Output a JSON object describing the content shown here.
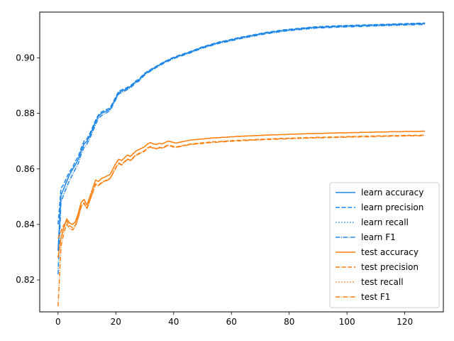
{
  "chart_data": {
    "type": "line",
    "title": "",
    "xlabel": "",
    "ylabel": "",
    "xlim": [
      -6.35,
      133.35
    ],
    "ylim": [
      0.8085,
      0.9165
    ],
    "xticks": [
      0,
      20,
      40,
      60,
      80,
      100,
      120
    ],
    "yticks": [
      0.82,
      0.84,
      0.86,
      0.88,
      0.9
    ],
    "ytick_labels": [
      "0.82",
      "0.84",
      "0.86",
      "0.88",
      "0.90"
    ],
    "grid": false,
    "legend_position": "lower-right",
    "colors": {
      "learn": "#1f86e8",
      "test": "#ff7f0e"
    },
    "x_start": 0,
    "x_end": 127,
    "series": [
      {
        "name": "learn accuracy",
        "group": "learn",
        "dash": "solid",
        "values": [
          0.8305,
          0.8505,
          0.853,
          0.8555,
          0.858,
          0.8598,
          0.8615,
          0.8635,
          0.8665,
          0.869,
          0.87,
          0.872,
          0.8745,
          0.877,
          0.879,
          0.88,
          0.8805,
          0.881,
          0.8815,
          0.8835,
          0.8855,
          0.8875,
          0.888,
          0.8885,
          0.889,
          0.8896,
          0.8905,
          0.8915,
          0.892,
          0.8932,
          0.8942,
          0.895,
          0.8955,
          0.8962,
          0.8968,
          0.8974,
          0.898,
          0.8986,
          0.899,
          0.8996,
          0.9,
          0.9004,
          0.9008,
          0.9011,
          0.9015,
          0.9018,
          0.9022,
          0.9026,
          0.903,
          0.9034,
          0.9038,
          0.9041,
          0.9044,
          0.9047,
          0.905,
          0.9053,
          0.9056,
          0.9058,
          0.906,
          0.9062,
          0.9065,
          0.9067,
          0.907,
          0.9072,
          0.9074,
          0.9076,
          0.9078,
          0.908,
          0.9082,
          0.9084,
          0.9086,
          0.9088,
          0.909,
          0.9091,
          0.9093,
          0.9094,
          0.9096,
          0.9097,
          0.9099,
          0.91,
          0.9101,
          0.9102,
          0.9103,
          0.9104,
          0.9105,
          0.9106,
          0.9107,
          0.9108,
          0.9109,
          0.911,
          0.911,
          0.9111,
          0.9111,
          0.9112,
          0.9112,
          0.9113,
          0.9113,
          0.9114,
          0.9114,
          0.9114,
          0.9115,
          0.9115,
          0.9115,
          0.9116,
          0.9116,
          0.9116,
          0.9117,
          0.9117,
          0.9117,
          0.9118,
          0.9118,
          0.9118,
          0.9119,
          0.9119,
          0.9119,
          0.912,
          0.912,
          0.912,
          0.9121,
          0.9121,
          0.9121,
          0.9122,
          0.9122,
          0.9122,
          0.9123,
          0.9123,
          0.9123,
          0.9124
        ]
      },
      {
        "name": "learn precision",
        "group": "learn",
        "dash": "dashed",
        "values": [
          0.84,
          0.853,
          0.8545,
          0.857,
          0.859,
          0.8605,
          0.8628,
          0.8645,
          0.8675,
          0.87,
          0.8708,
          0.8728,
          0.8752,
          0.8776,
          0.8795,
          0.8805,
          0.881,
          0.8815,
          0.882,
          0.884,
          0.886,
          0.888,
          0.8885,
          0.8889,
          0.8894,
          0.89,
          0.8908,
          0.8918,
          0.8923,
          0.8935,
          0.8945,
          0.8952,
          0.8958,
          0.8964,
          0.897,
          0.8976,
          0.8982,
          0.8988,
          0.8992,
          0.8998,
          0.9002,
          0.9006,
          0.901,
          0.9013,
          0.9017,
          0.902,
          0.9024,
          0.9028,
          0.9032,
          0.9036,
          0.904,
          0.9043,
          0.9046,
          0.9049,
          0.9052,
          0.9055,
          0.9058,
          0.906,
          0.9062,
          0.9064,
          0.9067,
          0.9069,
          0.9072,
          0.9074,
          0.9076,
          0.9078,
          0.908,
          0.9082,
          0.9084,
          0.9086,
          0.9088,
          0.909,
          0.9092,
          0.9093,
          0.9095,
          0.9096,
          0.9098,
          0.9099,
          0.9101,
          0.9102,
          0.9103,
          0.9104,
          0.9105,
          0.9106,
          0.9107,
          0.9108,
          0.9109,
          0.911,
          0.9111,
          0.9112,
          0.9112,
          0.9113,
          0.9113,
          0.9114,
          0.9114,
          0.9115,
          0.9115,
          0.9116,
          0.9116,
          0.9116,
          0.9117,
          0.9117,
          0.9117,
          0.9118,
          0.9118,
          0.9118,
          0.9119,
          0.9119,
          0.9119,
          0.912,
          0.912,
          0.912,
          0.9121,
          0.9121,
          0.9121,
          0.9122,
          0.9122,
          0.9122,
          0.9123,
          0.9123,
          0.9123,
          0.9124,
          0.9124,
          0.9124,
          0.9125,
          0.9125,
          0.9125,
          0.9126
        ]
      },
      {
        "name": "learn recall",
        "group": "learn",
        "dash": "dotted",
        "values": [
          0.8305,
          0.8505,
          0.853,
          0.8555,
          0.858,
          0.8598,
          0.8615,
          0.8635,
          0.8665,
          0.869,
          0.87,
          0.872,
          0.8745,
          0.877,
          0.879,
          0.88,
          0.8805,
          0.881,
          0.8815,
          0.8835,
          0.8855,
          0.8875,
          0.888,
          0.8885,
          0.889,
          0.8896,
          0.8905,
          0.8915,
          0.892,
          0.8932,
          0.8942,
          0.895,
          0.8955,
          0.8962,
          0.8968,
          0.8974,
          0.898,
          0.8986,
          0.899,
          0.8996,
          0.9,
          0.9004,
          0.9008,
          0.9011,
          0.9015,
          0.9018,
          0.9022,
          0.9026,
          0.903,
          0.9034,
          0.9038,
          0.9041,
          0.9044,
          0.9047,
          0.905,
          0.9053,
          0.9056,
          0.9058,
          0.906,
          0.9062,
          0.9065,
          0.9067,
          0.907,
          0.9072,
          0.9074,
          0.9076,
          0.9078,
          0.908,
          0.9082,
          0.9084,
          0.9086,
          0.9088,
          0.909,
          0.9091,
          0.9093,
          0.9094,
          0.9096,
          0.9097,
          0.9099,
          0.91,
          0.9101,
          0.9102,
          0.9103,
          0.9104,
          0.9105,
          0.9106,
          0.9107,
          0.9108,
          0.9109,
          0.911,
          0.911,
          0.9111,
          0.9111,
          0.9112,
          0.9112,
          0.9113,
          0.9113,
          0.9114,
          0.9114,
          0.9114,
          0.9115,
          0.9115,
          0.9115,
          0.9116,
          0.9116,
          0.9116,
          0.9117,
          0.9117,
          0.9117,
          0.9118,
          0.9118,
          0.9118,
          0.9119,
          0.9119,
          0.9119,
          0.912,
          0.912,
          0.912,
          0.9121,
          0.9121,
          0.9121,
          0.9122,
          0.9122,
          0.9122,
          0.9123,
          0.9123,
          0.9123,
          0.9124
        ]
      },
      {
        "name": "learn F1",
        "group": "learn",
        "dash": "dashdot",
        "values": [
          0.822,
          0.848,
          0.851,
          0.8535,
          0.856,
          0.858,
          0.86,
          0.862,
          0.8652,
          0.8678,
          0.869,
          0.871,
          0.8735,
          0.876,
          0.8782,
          0.8792,
          0.8798,
          0.8804,
          0.881,
          0.883,
          0.885,
          0.887,
          0.8875,
          0.888,
          0.8886,
          0.8892,
          0.8901,
          0.8911,
          0.8916,
          0.8928,
          0.8938,
          0.8946,
          0.8952,
          0.8959,
          0.8965,
          0.8971,
          0.8977,
          0.8983,
          0.8987,
          0.8993,
          0.8997,
          0.9001,
          0.9005,
          0.9008,
          0.9012,
          0.9015,
          0.9019,
          0.9023,
          0.9027,
          0.9031,
          0.9035,
          0.9038,
          0.9041,
          0.9044,
          0.9047,
          0.905,
          0.9053,
          0.9055,
          0.9057,
          0.9059,
          0.9062,
          0.9064,
          0.9067,
          0.9069,
          0.9071,
          0.9073,
          0.9075,
          0.9077,
          0.9079,
          0.9081,
          0.9083,
          0.9085,
          0.9087,
          0.9088,
          0.909,
          0.9091,
          0.9093,
          0.9094,
          0.9096,
          0.9097,
          0.9098,
          0.9099,
          0.91,
          0.9101,
          0.9102,
          0.9103,
          0.9104,
          0.9105,
          0.9106,
          0.9107,
          0.9107,
          0.9108,
          0.9108,
          0.9109,
          0.9109,
          0.911,
          0.911,
          0.9111,
          0.9111,
          0.9111,
          0.9112,
          0.9112,
          0.9112,
          0.9113,
          0.9113,
          0.9113,
          0.9114,
          0.9114,
          0.9114,
          0.9115,
          0.9115,
          0.9115,
          0.9116,
          0.9116,
          0.9116,
          0.9117,
          0.9117,
          0.9117,
          0.9118,
          0.9118,
          0.9118,
          0.9119,
          0.9119,
          0.9119,
          0.912,
          0.912,
          0.912,
          0.9121
        ]
      },
      {
        "name": "test accuracy",
        "group": "test",
        "dash": "solid",
        "values": [
          0.828,
          0.835,
          0.839,
          0.842,
          0.8405,
          0.84,
          0.841,
          0.844,
          0.848,
          0.849,
          0.847,
          0.85,
          0.853,
          0.856,
          0.8555,
          0.8565,
          0.857,
          0.8575,
          0.858,
          0.86,
          0.862,
          0.8635,
          0.863,
          0.864,
          0.865,
          0.8645,
          0.8655,
          0.8665,
          0.867,
          0.8675,
          0.868,
          0.869,
          0.8695,
          0.869,
          0.8688,
          0.8692,
          0.869,
          0.8695,
          0.87,
          0.8698,
          0.8695,
          0.8693,
          0.8696,
          0.8698,
          0.87,
          0.8702,
          0.8704,
          0.8705,
          0.8706,
          0.8707,
          0.8708,
          0.8709,
          0.871,
          0.8711,
          0.8712,
          0.8712,
          0.8713,
          0.8714,
          0.8714,
          0.8715,
          0.8716,
          0.8716,
          0.8717,
          0.8717,
          0.8718,
          0.8718,
          0.8719,
          0.8719,
          0.872,
          0.872,
          0.8721,
          0.8721,
          0.8722,
          0.8722,
          0.8723,
          0.8723,
          0.8723,
          0.8724,
          0.8724,
          0.8724,
          0.8725,
          0.8725,
          0.8725,
          0.8726,
          0.8726,
          0.8726,
          0.8727,
          0.8727,
          0.8727,
          0.8728,
          0.8728,
          0.8728,
          0.8728,
          0.8729,
          0.8729,
          0.8729,
          0.8729,
          0.873,
          0.873,
          0.873,
          0.873,
          0.8731,
          0.8731,
          0.8731,
          0.8731,
          0.8732,
          0.8732,
          0.8732,
          0.8732,
          0.8732,
          0.8733,
          0.8733,
          0.8733,
          0.8733,
          0.8733,
          0.8734,
          0.8734,
          0.8734,
          0.8734,
          0.8734,
          0.8735,
          0.8735,
          0.8735,
          0.8735,
          0.8735,
          0.8735,
          0.8736,
          0.8736
        ]
      },
      {
        "name": "test precision",
        "group": "test",
        "dash": "dashed",
        "values": [
          0.835,
          0.8375,
          0.8398,
          0.8412,
          0.8395,
          0.8388,
          0.8398,
          0.8428,
          0.8466,
          0.8478,
          0.8458,
          0.8488,
          0.8516,
          0.8546,
          0.8541,
          0.8551,
          0.8556,
          0.8561,
          0.8566,
          0.8586,
          0.8606,
          0.8621,
          0.8616,
          0.8626,
          0.8636,
          0.8631,
          0.8641,
          0.8651,
          0.8656,
          0.8661,
          0.8666,
          0.8676,
          0.8681,
          0.8676,
          0.8674,
          0.8678,
          0.8676,
          0.8681,
          0.8686,
          0.8684,
          0.8681,
          0.8679,
          0.8682,
          0.8684,
          0.8686,
          0.8688,
          0.869,
          0.8691,
          0.8692,
          0.8693,
          0.8694,
          0.8695,
          0.8696,
          0.8697,
          0.8698,
          0.8698,
          0.8699,
          0.87,
          0.87,
          0.8701,
          0.8702,
          0.8702,
          0.8703,
          0.8703,
          0.8704,
          0.8704,
          0.8705,
          0.8705,
          0.8706,
          0.8706,
          0.8707,
          0.8707,
          0.8708,
          0.8708,
          0.8709,
          0.8709,
          0.8709,
          0.871,
          0.871,
          0.871,
          0.8711,
          0.8711,
          0.8711,
          0.8712,
          0.8712,
          0.8712,
          0.8713,
          0.8713,
          0.8713,
          0.8714,
          0.8714,
          0.8714,
          0.8714,
          0.8715,
          0.8715,
          0.8715,
          0.8715,
          0.8716,
          0.8716,
          0.8716,
          0.8716,
          0.8717,
          0.8717,
          0.8717,
          0.8717,
          0.8718,
          0.8718,
          0.8718,
          0.8718,
          0.8718,
          0.8719,
          0.8719,
          0.8719,
          0.8719,
          0.8719,
          0.872,
          0.872,
          0.872,
          0.872,
          0.872,
          0.8721,
          0.8721,
          0.8721,
          0.8721,
          0.8721,
          0.8721,
          0.8722,
          0.8722
        ]
      },
      {
        "name": "test recall",
        "group": "test",
        "dash": "dotted",
        "values": [
          0.828,
          0.835,
          0.839,
          0.842,
          0.8405,
          0.84,
          0.841,
          0.844,
          0.848,
          0.849,
          0.847,
          0.85,
          0.853,
          0.856,
          0.8555,
          0.8565,
          0.857,
          0.8575,
          0.858,
          0.86,
          0.862,
          0.8635,
          0.863,
          0.864,
          0.865,
          0.8645,
          0.8655,
          0.8665,
          0.867,
          0.8675,
          0.868,
          0.869,
          0.8695,
          0.869,
          0.8688,
          0.8692,
          0.869,
          0.8695,
          0.87,
          0.8698,
          0.8695,
          0.8693,
          0.8696,
          0.8698,
          0.87,
          0.8702,
          0.8704,
          0.8705,
          0.8706,
          0.8707,
          0.8708,
          0.8709,
          0.871,
          0.8711,
          0.8712,
          0.8712,
          0.8713,
          0.8714,
          0.8714,
          0.8715,
          0.8716,
          0.8716,
          0.8717,
          0.8717,
          0.8718,
          0.8718,
          0.8719,
          0.8719,
          0.872,
          0.872,
          0.8721,
          0.8721,
          0.8722,
          0.8722,
          0.8723,
          0.8723,
          0.8723,
          0.8724,
          0.8724,
          0.8724,
          0.8725,
          0.8725,
          0.8725,
          0.8726,
          0.8726,
          0.8726,
          0.8727,
          0.8727,
          0.8727,
          0.8728,
          0.8728,
          0.8728,
          0.8728,
          0.8729,
          0.8729,
          0.8729,
          0.8729,
          0.873,
          0.873,
          0.873,
          0.873,
          0.8731,
          0.8731,
          0.8731,
          0.8731,
          0.8732,
          0.8732,
          0.8732,
          0.8732,
          0.8732,
          0.8733,
          0.8733,
          0.8733,
          0.8733,
          0.8733,
          0.8734,
          0.8734,
          0.8734,
          0.8734,
          0.8734,
          0.8735,
          0.8735,
          0.8735,
          0.8735,
          0.8735,
          0.8735,
          0.8736,
          0.8736
        ]
      },
      {
        "name": "test F1",
        "group": "test",
        "dash": "dashdot",
        "values": [
          0.8105,
          0.832,
          0.837,
          0.8402,
          0.8385,
          0.838,
          0.8392,
          0.8424,
          0.8464,
          0.8476,
          0.8456,
          0.8486,
          0.8514,
          0.8544,
          0.8539,
          0.8549,
          0.8554,
          0.8559,
          0.8564,
          0.8584,
          0.8604,
          0.8619,
          0.8614,
          0.8624,
          0.8634,
          0.8629,
          0.8639,
          0.8649,
          0.8654,
          0.8659,
          0.8664,
          0.8674,
          0.8679,
          0.8674,
          0.8672,
          0.8676,
          0.8674,
          0.8679,
          0.8684,
          0.8682,
          0.8679,
          0.8677,
          0.868,
          0.8682,
          0.8684,
          0.8686,
          0.8688,
          0.8689,
          0.869,
          0.8691,
          0.8692,
          0.8693,
          0.8694,
          0.8695,
          0.8696,
          0.8696,
          0.8697,
          0.8698,
          0.8698,
          0.8699,
          0.87,
          0.87,
          0.8701,
          0.8701,
          0.8702,
          0.8702,
          0.8703,
          0.8703,
          0.8704,
          0.8704,
          0.8705,
          0.8705,
          0.8706,
          0.8706,
          0.8707,
          0.8707,
          0.8707,
          0.8708,
          0.8708,
          0.8708,
          0.8709,
          0.8709,
          0.8709,
          0.871,
          0.871,
          0.871,
          0.8711,
          0.8711,
          0.8711,
          0.8712,
          0.8712,
          0.8712,
          0.8712,
          0.8713,
          0.8713,
          0.8713,
          0.8713,
          0.8714,
          0.8714,
          0.8714,
          0.8714,
          0.8715,
          0.8715,
          0.8715,
          0.8715,
          0.8716,
          0.8716,
          0.8716,
          0.8716,
          0.8716,
          0.8717,
          0.8717,
          0.8717,
          0.8717,
          0.8717,
          0.8718,
          0.8718,
          0.8718,
          0.8718,
          0.8718,
          0.8719,
          0.8719,
          0.8719,
          0.8719,
          0.8719,
          0.8719,
          0.872,
          0.872
        ]
      }
    ]
  }
}
